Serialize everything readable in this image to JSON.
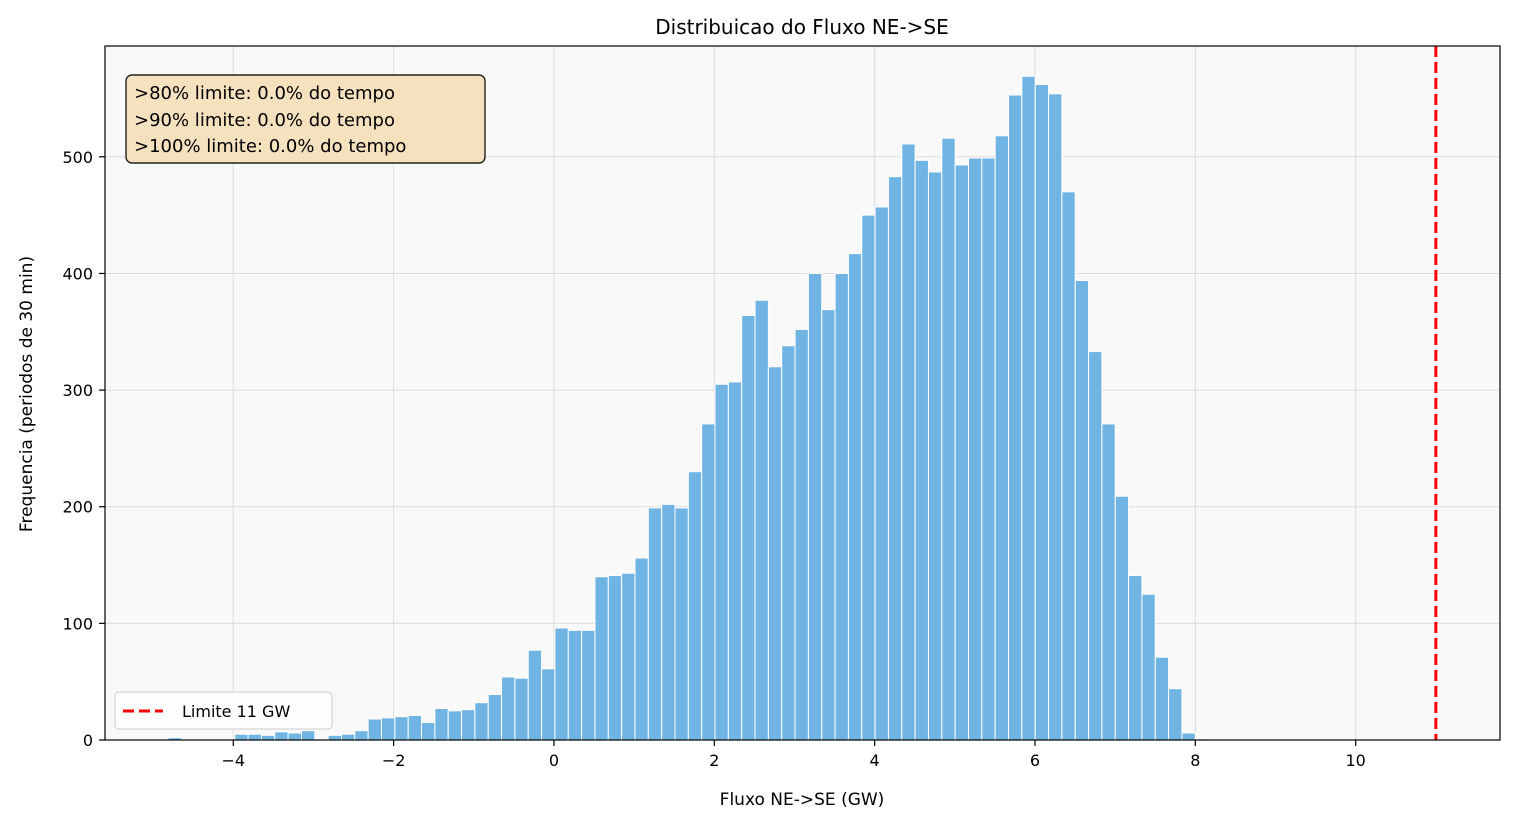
{
  "chart_data": {
    "type": "bar",
    "title": "Distribuicao do Fluxo NE->SE",
    "xlabel": "Fluxo NE->SE (GW)",
    "ylabel": "Frequencia (periodos de 30 min)",
    "xlim": [
      -5.6,
      11.8
    ],
    "ylim": [
      0,
      595
    ],
    "xticks": [
      -4,
      -2,
      0,
      2,
      4,
      6,
      8,
      10
    ],
    "xtick_labels": [
      "−4",
      "−2",
      "0",
      "2",
      "4",
      "6",
      "8",
      "10"
    ],
    "yticks": [
      0,
      100,
      200,
      300,
      400,
      500
    ],
    "yticks_labels": [
      "0",
      "100",
      "200",
      "300",
      "400",
      "500"
    ],
    "grid": true,
    "bin_start": -4.98,
    "bin_width": 0.1664,
    "values": [
      0,
      2,
      0,
      0,
      0,
      0,
      5,
      5,
      4,
      7,
      6,
      8,
      0,
      4,
      5,
      8,
      18,
      19,
      20,
      21,
      15,
      27,
      25,
      26,
      32,
      39,
      54,
      53,
      77,
      61,
      96,
      94,
      94,
      140,
      141,
      143,
      156,
      199,
      202,
      199,
      230,
      271,
      305,
      307,
      364,
      377,
      320,
      338,
      352,
      400,
      369,
      400,
      417,
      450,
      457,
      483,
      511,
      497,
      487,
      516,
      493,
      499,
      499,
      518,
      553,
      569,
      562,
      554,
      470,
      394,
      333,
      271,
      209,
      141,
      125,
      71,
      44,
      6,
      1,
      0,
      0,
      0,
      0,
      0,
      0,
      0,
      0,
      0,
      0,
      0,
      0,
      0,
      0,
      0,
      0,
      0,
      0,
      0,
      0
    ],
    "bar_color": "#6fb4e3",
    "limit_line": {
      "x": 11,
      "label": "Limite 11 GW",
      "color": "#ff0000"
    },
    "legend_placement": "lower-left",
    "annotation": {
      "lines": [
        ">80% limite: 0.0% do tempo",
        ">90% limite: 0.0% do tempo",
        ">100% limite: 0.0% do tempo"
      ],
      "placement": "upper-left",
      "background": "#f6e1bf"
    }
  }
}
